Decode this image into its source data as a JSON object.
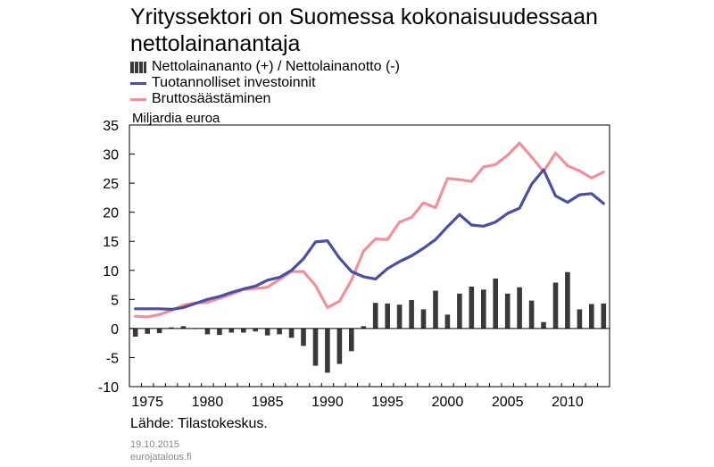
{
  "chart_data": {
    "type": "bar+line",
    "title": "Yrityssektori on Suomessa kokonaisuudessaan nettolainanantaja",
    "unit_label": "Miljardia euroa",
    "x": [
      1974,
      1975,
      1976,
      1977,
      1978,
      1979,
      1980,
      1981,
      1982,
      1983,
      1984,
      1985,
      1986,
      1987,
      1988,
      1989,
      1990,
      1991,
      1992,
      1993,
      1994,
      1995,
      1996,
      1997,
      1998,
      1999,
      2000,
      2001,
      2002,
      2003,
      2004,
      2005,
      2006,
      2007,
      2008,
      2009,
      2010,
      2011,
      2012,
      2013
    ],
    "xticks": [
      1975,
      1980,
      1985,
      1990,
      1995,
      2000,
      2005,
      2010
    ],
    "ylim": [
      -10,
      35
    ],
    "yticks": [
      -10,
      -5,
      0,
      5,
      10,
      15,
      20,
      25,
      30,
      35
    ],
    "grid": false,
    "legend_position": "top-left",
    "series": [
      {
        "name": "Nettolainananto (+) / Nettolainanotto (-)",
        "kind": "bar",
        "color": "#3a3a3a",
        "values": [
          -1.4,
          -0.9,
          -0.8,
          0.2,
          0.4,
          0.0,
          -1.0,
          -1.1,
          -0.7,
          -0.7,
          -0.5,
          -1.2,
          -1.0,
          -1.6,
          -3.0,
          -6.4,
          -7.6,
          -6.1,
          -3.9,
          0.4,
          4.4,
          4.3,
          4.1,
          4.9,
          3.3,
          6.5,
          2.4,
          6.0,
          7.2,
          6.7,
          8.6,
          6.0,
          7.1,
          4.8,
          1.1,
          7.9,
          9.7,
          3.3,
          4.2,
          4.3
        ]
      },
      {
        "name": "Tuotannolliset investoinnit",
        "kind": "line",
        "color": "#4a4fa0",
        "values": [
          3.4,
          3.4,
          3.4,
          3.3,
          3.6,
          4.3,
          5.0,
          5.5,
          6.2,
          6.8,
          7.3,
          8.3,
          8.8,
          10.0,
          12.0,
          14.9,
          15.1,
          12.1,
          9.8,
          8.9,
          8.5,
          10.3,
          11.5,
          12.5,
          13.8,
          15.3,
          17.5,
          19.6,
          17.8,
          17.6,
          18.3,
          19.8,
          20.7,
          24.8,
          27.3,
          22.8,
          21.7,
          23.0,
          23.2,
          21.5
        ]
      },
      {
        "name": "Bruttosäästäminen",
        "kind": "line",
        "color": "#f0909a",
        "values": [
          2.1,
          2.0,
          2.4,
          3.1,
          4.0,
          4.4,
          4.5,
          5.2,
          5.9,
          6.7,
          6.9,
          7.1,
          8.4,
          9.8,
          9.8,
          7.4,
          3.6,
          4.7,
          8.3,
          13.3,
          15.4,
          15.3,
          18.3,
          19.1,
          21.6,
          20.8,
          25.8,
          25.6,
          25.3,
          27.8,
          28.2,
          29.8,
          31.9,
          29.5,
          27.0,
          30.2,
          28.0,
          27.1,
          25.9,
          26.9
        ]
      }
    ]
  },
  "source": "Lähde: Tilastokeskus.",
  "date": "19.10.2015",
  "site": "eurojatalous.fi"
}
